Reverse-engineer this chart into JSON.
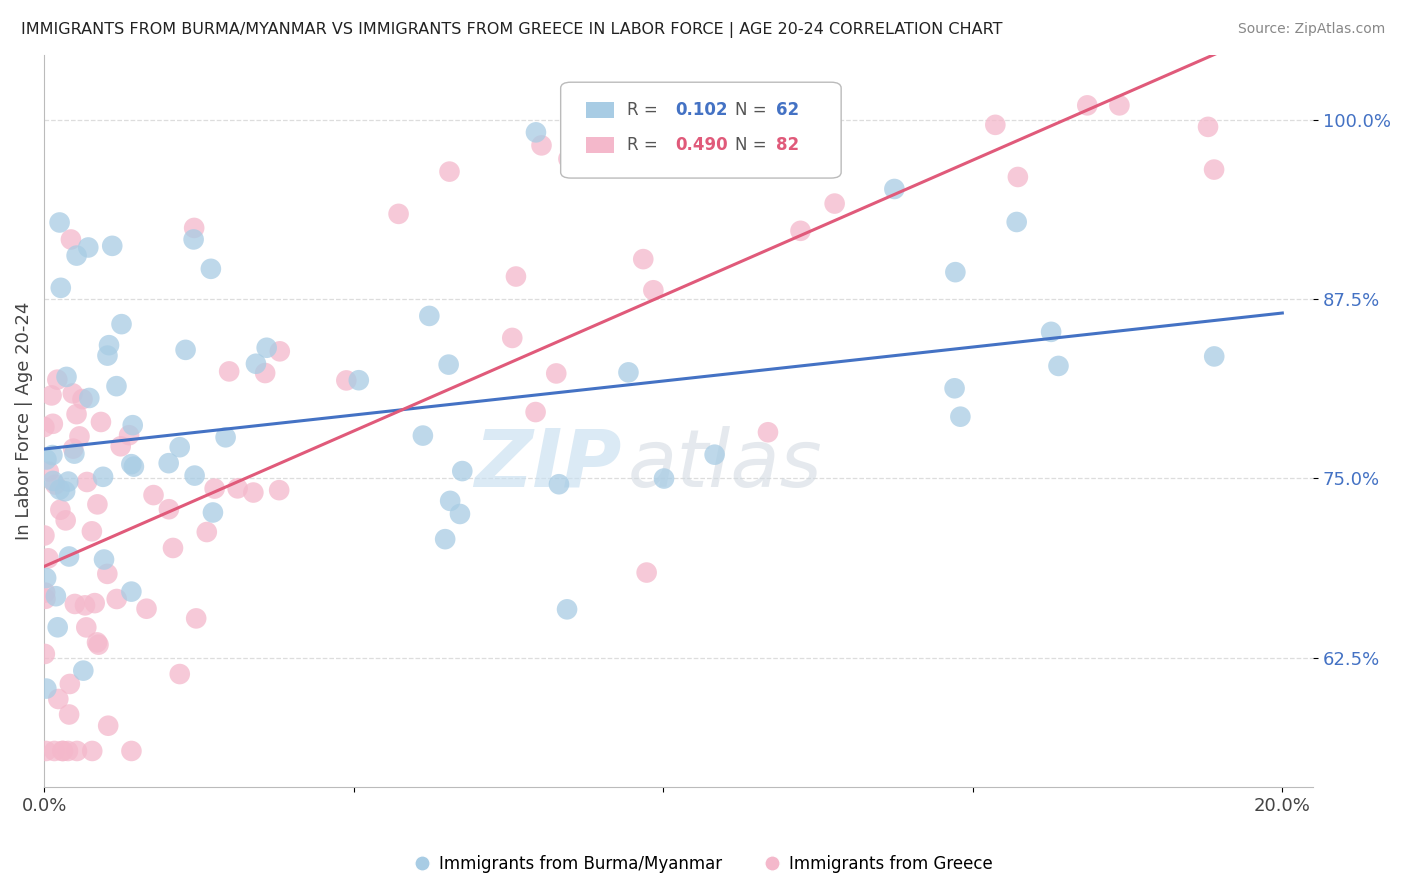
{
  "title": "IMMIGRANTS FROM BURMA/MYANMAR VS IMMIGRANTS FROM GREECE IN LABOR FORCE | AGE 20-24 CORRELATION CHART",
  "source": "Source: ZipAtlas.com",
  "ylabel": "In Labor Force | Age 20-24",
  "watermark_zip": "ZIP",
  "watermark_atlas": "atlas",
  "blue_R": 0.102,
  "blue_N": 62,
  "pink_R": 0.49,
  "pink_N": 82,
  "blue_color": "#a8cce4",
  "pink_color": "#f4b8cb",
  "blue_line_color": "#4472c4",
  "pink_line_color": "#e05a7a",
  "xlim": [
    0.0,
    0.205
  ],
  "ylim": [
    0.535,
    1.045
  ],
  "yticks": [
    0.625,
    0.75,
    0.875,
    1.0
  ],
  "ytick_labels": [
    "62.5%",
    "75.0%",
    "87.5%",
    "100.0%"
  ],
  "xtick_left_label": "0.0%",
  "xtick_right_label": "20.0%",
  "legend_label_blue": "Immigrants from Burma/Myanmar",
  "legend_label_pink": "Immigrants from Greece"
}
